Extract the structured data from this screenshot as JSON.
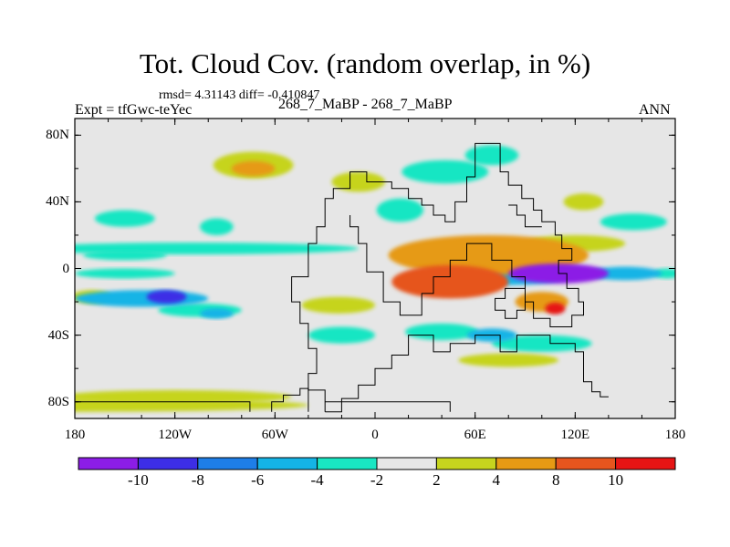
{
  "chart_data": {
    "type": "heatmap",
    "title": "Tot. Cloud Cov. (random overlap, in %)",
    "stats_line": "rmsd= 4.31143 diff= -0.410847",
    "experiment_label": "Expt = tfGwc-teYec",
    "case_line": "268_7_MaBP - 268_7_MaBP",
    "season": "ANN",
    "x_ticks": [
      {
        "value": -180,
        "label": "180"
      },
      {
        "value": -120,
        "label": "120W"
      },
      {
        "value": -60,
        "label": "60W"
      },
      {
        "value": 0,
        "label": "0"
      },
      {
        "value": 60,
        "label": "60E"
      },
      {
        "value": 120,
        "label": "120E"
      },
      {
        "value": 180,
        "label": "180"
      }
    ],
    "y_ticks": [
      {
        "value": 80,
        "label": "80N"
      },
      {
        "value": 40,
        "label": "40N"
      },
      {
        "value": 0,
        "label": "0"
      },
      {
        "value": -40,
        "label": "40S"
      },
      {
        "value": -80,
        "label": "80S"
      }
    ],
    "xlim": [
      -180,
      180
    ],
    "ylim": [
      -90,
      90
    ],
    "background_color": "#e6e6e6",
    "colorbar": {
      "colors": [
        "#8c1de6",
        "#3d2ee6",
        "#1e7ee8",
        "#14b4e6",
        "#19e6c3",
        "#e6e6e6",
        "#c6d41e",
        "#e69a14",
        "#e6551e",
        "#e61414"
      ],
      "labels": [
        "-10",
        "-8",
        "-6",
        "-4",
        "-2",
        "2",
        "4",
        "8",
        "10"
      ]
    },
    "anomalies": [
      {
        "lon": -73,
        "lat": 62,
        "dlon": 24,
        "dlat": 8,
        "value": 3.2
      },
      {
        "lon": -73,
        "lat": 60,
        "dlon": 13,
        "dlat": 4.5,
        "value": 5.5
      },
      {
        "lon": 42,
        "lat": 58,
        "dlon": 26,
        "dlat": 7,
        "value": -3.2
      },
      {
        "lon": -10,
        "lat": 52,
        "dlon": 16,
        "dlat": 6,
        "value": 2.8
      },
      {
        "lon": 70,
        "lat": 68,
        "dlon": 16,
        "dlat": 6,
        "value": -2.8
      },
      {
        "lon": 15,
        "lat": 35,
        "dlon": 14,
        "dlat": 7,
        "value": -2.5
      },
      {
        "lon": -150,
        "lat": 30,
        "dlon": 18,
        "dlat": 5,
        "value": -2.3
      },
      {
        "lon": -95,
        "lat": 25,
        "dlon": 10,
        "dlat": 5,
        "value": -2.5
      },
      {
        "lon": 125,
        "lat": 40,
        "dlon": 12,
        "dlat": 5,
        "value": 3.5
      },
      {
        "lon": 155,
        "lat": 28,
        "dlon": 20,
        "dlat": 5,
        "value": -2.3
      },
      {
        "lon": -110,
        "lat": 12,
        "dlon": 100,
        "dlat": 3.5,
        "value": -2.8
      },
      {
        "lon": -150,
        "lat": 8,
        "dlon": 25,
        "dlat": 3,
        "value": -3.5
      },
      {
        "lon": 120,
        "lat": 15,
        "dlon": 30,
        "dlat": 5,
        "value": 3.8
      },
      {
        "lon": 68,
        "lat": 8,
        "dlon": 60,
        "dlat": 12,
        "value": 7.5
      },
      {
        "lon": 45,
        "lat": -8,
        "dlon": 35,
        "dlat": 10,
        "value": 8.0
      },
      {
        "lon": 75,
        "lat": -5,
        "dlon": 40,
        "dlat": 5,
        "value": -4.5
      },
      {
        "lon": 110,
        "lat": -3,
        "dlon": 30,
        "dlat": 6,
        "value": -11.0
      },
      {
        "lon": 150,
        "lat": -3,
        "dlon": 22,
        "dlat": 4,
        "value": -6.0
      },
      {
        "lon": -150,
        "lat": -3,
        "dlon": 30,
        "dlat": 3,
        "value": -3.0
      },
      {
        "lon": 175,
        "lat": -3,
        "dlon": 8,
        "dlat": 3,
        "value": -4.0
      },
      {
        "lon": 100,
        "lat": -20,
        "dlon": 16,
        "dlat": 6,
        "value": 5.5
      },
      {
        "lon": 108,
        "lat": -24,
        "dlon": 6,
        "dlat": 3.5,
        "value": 10.5
      },
      {
        "lon": -140,
        "lat": -18,
        "dlon": 40,
        "dlat": 5,
        "value": -5.0
      },
      {
        "lon": -125,
        "lat": -17,
        "dlon": 12,
        "dlat": 4,
        "value": -10.0
      },
      {
        "lon": -170,
        "lat": -17,
        "dlon": 12,
        "dlat": 4,
        "value": 3.0
      },
      {
        "lon": -105,
        "lat": -25,
        "dlon": 25,
        "dlat": 4,
        "value": -3.5
      },
      {
        "lon": -95,
        "lat": -27,
        "dlon": 10,
        "dlat": 3,
        "value": -5.0
      },
      {
        "lon": -22,
        "lat": -22,
        "dlon": 22,
        "dlat": 5,
        "value": 2.8
      },
      {
        "lon": -20,
        "lat": -40,
        "dlon": 20,
        "dlat": 5,
        "value": -3.0
      },
      {
        "lon": 40,
        "lat": -38,
        "dlon": 22,
        "dlat": 5,
        "value": -3.5
      },
      {
        "lon": 70,
        "lat": -40,
        "dlon": 15,
        "dlat": 4,
        "value": -4.5
      },
      {
        "lon": 100,
        "lat": -45,
        "dlon": 30,
        "dlat": 5,
        "value": -2.5
      },
      {
        "lon": 80,
        "lat": -55,
        "dlon": 30,
        "dlat": 4,
        "value": 2.5
      },
      {
        "lon": -120,
        "lat": -77,
        "dlon": 70,
        "dlat": 4,
        "value": 3.5
      },
      {
        "lon": -180,
        "lat": -82,
        "dlon": 140,
        "dlat": 4,
        "value": 2.8
      }
    ],
    "coastlines": [
      [
        [
          -30,
          -86
        ],
        [
          -30,
          -73
        ],
        [
          -40,
          -73
        ],
        [
          -40,
          -63
        ],
        [
          -35,
          -63
        ],
        [
          -35,
          -48
        ],
        [
          -40,
          -48
        ],
        [
          -40,
          -33
        ],
        [
          -45,
          -33
        ],
        [
          -45,
          -20
        ],
        [
          -50,
          -20
        ],
        [
          -50,
          -5
        ],
        [
          -40,
          -5
        ],
        [
          -40,
          15
        ],
        [
          -35,
          15
        ],
        [
          -35,
          25
        ],
        [
          -30,
          25
        ],
        [
          -30,
          42
        ],
        [
          -25,
          42
        ],
        [
          -25,
          48
        ],
        [
          -15,
          48
        ],
        [
          -15,
          58
        ],
        [
          -5,
          58
        ],
        [
          -5,
          52
        ],
        [
          10,
          52
        ],
        [
          10,
          48
        ],
        [
          20,
          48
        ],
        [
          20,
          42
        ],
        [
          28,
          42
        ],
        [
          28,
          38
        ],
        [
          35,
          38
        ],
        [
          35,
          32
        ],
        [
          42,
          32
        ],
        [
          42,
          28
        ],
        [
          48,
          28
        ],
        [
          48,
          40
        ],
        [
          55,
          40
        ],
        [
          55,
          55
        ],
        [
          60,
          55
        ],
        [
          60,
          75
        ],
        [
          75,
          75
        ],
        [
          75,
          58
        ],
        [
          80,
          58
        ],
        [
          80,
          50
        ],
        [
          88,
          50
        ],
        [
          88,
          42
        ],
        [
          95,
          42
        ],
        [
          95,
          35
        ],
        [
          100,
          35
        ],
        [
          100,
          28
        ],
        [
          108,
          28
        ],
        [
          108,
          20
        ],
        [
          112,
          20
        ],
        [
          112,
          12
        ],
        [
          118,
          12
        ],
        [
          118,
          5
        ],
        [
          110,
          5
        ],
        [
          110,
          -3
        ],
        [
          115,
          -3
        ],
        [
          115,
          -12
        ],
        [
          122,
          -12
        ],
        [
          122,
          -20
        ],
        [
          125,
          -20
        ],
        [
          125,
          -28
        ],
        [
          118,
          -28
        ],
        [
          118,
          -35
        ],
        [
          105,
          -35
        ],
        [
          105,
          -30
        ],
        [
          95,
          -30
        ],
        [
          95,
          -20
        ],
        [
          90,
          -20
        ],
        [
          90,
          -5
        ],
        [
          82,
          -5
        ],
        [
          82,
          5
        ],
        [
          70,
          5
        ],
        [
          70,
          15
        ],
        [
          55,
          15
        ],
        [
          55,
          5
        ],
        [
          45,
          5
        ],
        [
          45,
          -5
        ],
        [
          35,
          -5
        ],
        [
          35,
          -15
        ],
        [
          28,
          -15
        ],
        [
          28,
          -28
        ],
        [
          15,
          -28
        ],
        [
          15,
          -20
        ],
        [
          5,
          -20
        ],
        [
          5,
          -2
        ],
        [
          -5,
          -2
        ],
        [
          -5,
          15
        ],
        [
          -10,
          15
        ],
        [
          -10,
          25
        ],
        [
          -15,
          25
        ],
        [
          -15,
          32
        ]
      ],
      [
        [
          -30,
          -86
        ],
        [
          -20,
          -86
        ],
        [
          -20,
          -78
        ],
        [
          -10,
          -78
        ],
        [
          -10,
          -70
        ],
        [
          0,
          -70
        ],
        [
          0,
          -60
        ],
        [
          10,
          -60
        ],
        [
          10,
          -52
        ],
        [
          20,
          -52
        ],
        [
          20,
          -40
        ],
        [
          35,
          -40
        ],
        [
          35,
          -50
        ],
        [
          45,
          -50
        ],
        [
          45,
          -45
        ],
        [
          60,
          -45
        ],
        [
          60,
          -40
        ],
        [
          75,
          -40
        ],
        [
          75,
          -50
        ],
        [
          85,
          -50
        ],
        [
          85,
          -40
        ],
        [
          105,
          -40
        ],
        [
          105,
          -45
        ],
        [
          120,
          -45
        ],
        [
          120,
          -50
        ],
        [
          125,
          -50
        ],
        [
          125,
          -68
        ],
        [
          130,
          -68
        ],
        [
          130,
          -74
        ],
        [
          135,
          -74
        ],
        [
          135,
          -77
        ],
        [
          140,
          -77
        ]
      ],
      [
        [
          -40,
          -86
        ],
        [
          -40,
          -72
        ],
        [
          -45,
          -72
        ],
        [
          -45,
          -76
        ],
        [
          -55,
          -76
        ],
        [
          -55,
          -80
        ],
        [
          -62,
          -80
        ],
        [
          -62,
          -86
        ]
      ],
      [
        [
          -180,
          -80
        ],
        [
          -75,
          -80
        ],
        [
          -75,
          -86
        ]
      ],
      [
        [
          -30,
          -80
        ],
        [
          45,
          -80
        ],
        [
          45,
          -86
        ]
      ],
      [
        [
          80,
          38
        ],
        [
          85,
          38
        ],
        [
          85,
          32
        ],
        [
          90,
          32
        ],
        [
          90,
          25
        ],
        [
          100,
          25
        ]
      ],
      [
        [
          85,
          -12
        ],
        [
          90,
          -12
        ],
        [
          90,
          -25
        ],
        [
          85,
          -25
        ],
        [
          85,
          -30
        ],
        [
          78,
          -30
        ],
        [
          78,
          -25
        ],
        [
          72,
          -25
        ],
        [
          72,
          -18
        ],
        [
          78,
          -18
        ],
        [
          78,
          -12
        ],
        [
          85,
          -12
        ]
      ]
    ]
  }
}
